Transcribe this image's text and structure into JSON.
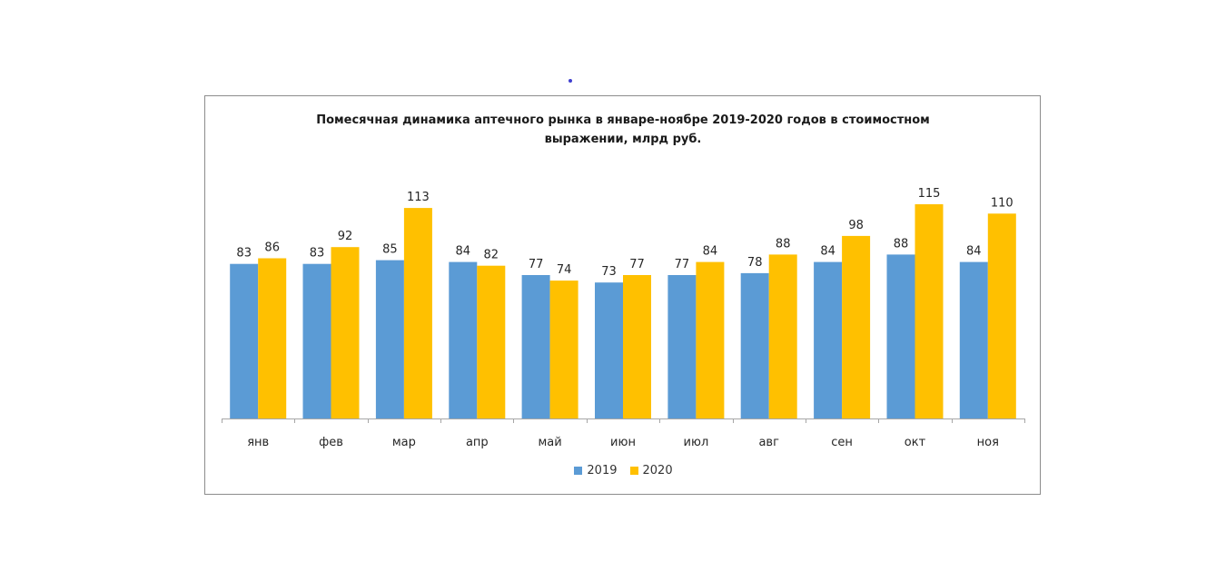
{
  "chart_data": {
    "type": "bar",
    "title": "Помесячная  динамика  аптечного  рынка  в январе-ноябре  2019-2020 годов в стоимостном выражении,  млрд руб.",
    "categories": [
      "янв",
      "фев",
      "мар",
      "апр",
      "май",
      "июн",
      "июл",
      "авг",
      "сен",
      "окт",
      "ноя"
    ],
    "series": [
      {
        "name": "2019",
        "color": "#5b9bd5",
        "values": [
          83,
          83,
          85,
          84,
          77,
          73,
          77,
          78,
          84,
          88,
          84
        ]
      },
      {
        "name": "2020",
        "color": "#ffc000",
        "values": [
          86,
          92,
          113,
          82,
          74,
          77,
          84,
          88,
          98,
          115,
          110
        ]
      }
    ],
    "data_labels": true,
    "ylim": [
      0,
      120
    ],
    "grid": false,
    "legend_position": "bottom"
  }
}
